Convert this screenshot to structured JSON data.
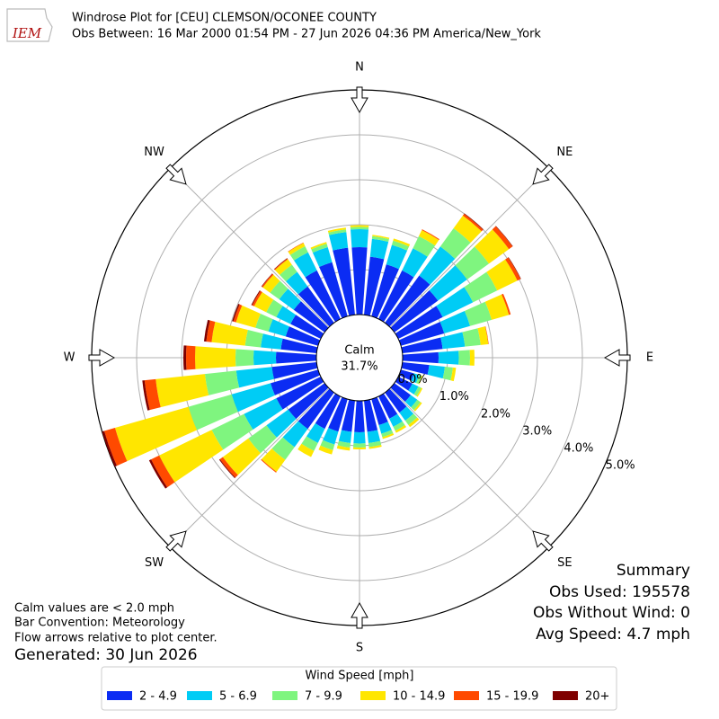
{
  "chart_data": {
    "type": "windrose",
    "logo": "IEM",
    "title": "Windrose Plot for [CEU] CLEMSON/OCONEE COUNTY",
    "subtitle": "Obs Between: 16 Mar 2000 01:54 PM - 27 Jun 2026 04:36 PM America/New_York",
    "compass": [
      "N",
      "NE",
      "E",
      "SE",
      "S",
      "SW",
      "W",
      "NW"
    ],
    "calm_text": [
      "Calm",
      "31.7%"
    ],
    "directions": [
      0,
      10,
      20,
      30,
      40,
      50,
      60,
      70,
      80,
      90,
      100,
      110,
      120,
      130,
      140,
      150,
      160,
      170,
      180,
      190,
      200,
      210,
      220,
      230,
      240,
      250,
      260,
      270,
      280,
      290,
      300,
      310,
      320,
      330,
      340,
      350
    ],
    "rlim": [
      0,
      5
    ],
    "rticks": [
      {
        "value": 0,
        "label": "0.0%"
      },
      {
        "value": 1,
        "label": "1.0%"
      },
      {
        "value": 2,
        "label": "2.0%"
      },
      {
        "value": 3,
        "label": "3.0%"
      },
      {
        "value": 4,
        "label": "4.0%"
      },
      {
        "value": 5,
        "label": "5.0%"
      }
    ],
    "grid": true,
    "legend_title": "Wind Speed [mph]",
    "series": [
      {
        "name": "2 - 4.9",
        "color": "#0b2cf3",
        "values": [
          1.5,
          1.3,
          1.2,
          1.2,
          1.3,
          1.2,
          1.1,
          1.0,
          0.9,
          0.8,
          0.6,
          0.3,
          0.35,
          0.45,
          0.55,
          0.55,
          0.6,
          0.7,
          0.7,
          0.7,
          0.75,
          0.8,
          1.0,
          1.0,
          1.1,
          1.1,
          1.0,
          0.9,
          0.8,
          0.75,
          0.75,
          0.85,
          1.0,
          1.2,
          1.25,
          1.5
        ]
      },
      {
        "name": "5 - 6.9",
        "color": "#00ccf5",
        "values": [
          0.4,
          0.4,
          0.45,
          0.55,
          0.8,
          0.8,
          0.75,
          0.6,
          0.5,
          0.45,
          0.35,
          0.12,
          0.15,
          0.18,
          0.22,
          0.2,
          0.2,
          0.25,
          0.25,
          0.25,
          0.3,
          0.35,
          0.5,
          0.6,
          0.8,
          0.9,
          0.8,
          0.5,
          0.45,
          0.4,
          0.35,
          0.4,
          0.4,
          0.45,
          0.35,
          0.35
        ]
      },
      {
        "name": "7 - 9.9",
        "color": "#7ff57f",
        "values": [
          0.05,
          0.06,
          0.1,
          0.3,
          0.5,
          0.6,
          0.6,
          0.5,
          0.35,
          0.25,
          0.18,
          0.06,
          0.07,
          0.09,
          0.12,
          0.1,
          0.08,
          0.09,
          0.09,
          0.1,
          0.13,
          0.2,
          0.35,
          0.5,
          0.8,
          1.0,
          0.7,
          0.4,
          0.35,
          0.3,
          0.25,
          0.25,
          0.2,
          0.15,
          0.08,
          0.06
        ]
      },
      {
        "name": "10 - 14.9",
        "color": "#ffe600",
        "values": [
          0.04,
          0.03,
          0.05,
          0.15,
          0.35,
          0.55,
          0.5,
          0.4,
          0.17,
          0.1,
          0.07,
          0.02,
          0.03,
          0.04,
          0.06,
          0.05,
          0.04,
          0.04,
          0.04,
          0.07,
          0.1,
          0.15,
          0.33,
          0.7,
          1.3,
          1.7,
          1.1,
          0.9,
          0.75,
          0.45,
          0.3,
          0.2,
          0.15,
          0.08,
          0.04,
          0.04
        ]
      },
      {
        "name": "15 - 19.9",
        "color": "#ff4a00",
        "values": [
          0,
          0,
          0,
          0.02,
          0.05,
          0.1,
          0.08,
          0.04,
          0.01,
          0,
          0,
          0,
          0,
          0,
          0,
          0,
          0,
          0,
          0,
          0,
          0,
          0,
          0.02,
          0.08,
          0.2,
          0.25,
          0.25,
          0.2,
          0.12,
          0.06,
          0.05,
          0.03,
          0.02,
          0.01,
          0,
          0
        ]
      },
      {
        "name": "20+",
        "color": "#7f0000",
        "values": [
          0,
          0,
          0,
          0,
          0.01,
          0.01,
          0.01,
          0,
          0,
          0,
          0,
          0,
          0,
          0,
          0,
          0,
          0,
          0,
          0,
          0,
          0,
          0,
          0,
          0.02,
          0.05,
          0.05,
          0.05,
          0.06,
          0.05,
          0.03,
          0.02,
          0.01,
          0.01,
          0,
          0,
          0
        ]
      }
    ],
    "notes": [
      "Calm values are < 2.0 mph",
      "Bar Convention: Meteorology",
      "Flow arrows relative to plot center."
    ],
    "generated": "Generated: 30 Jun 2026",
    "summary": [
      "Summary",
      "Obs Used: 195578",
      "Obs Without Wind: 0",
      "Avg Speed: 4.7 mph"
    ]
  }
}
